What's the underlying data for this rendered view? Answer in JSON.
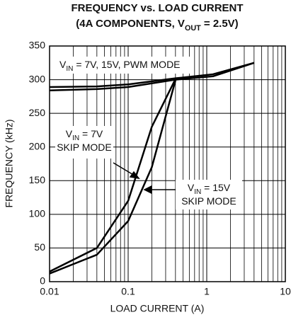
{
  "chart_data": {
    "type": "line",
    "title": [
      [
        {
          "text": "FREQUENCY vs. LOAD CURRENT"
        }
      ],
      [
        {
          "text": "(4A COMPONENTS, V"
        },
        {
          "text": "OUT",
          "sub": true
        },
        {
          "text": " = 2.5V)"
        }
      ]
    ],
    "xlabel": "LOAD CURRENT (A)",
    "ylabel": "FREQUENCY (kHz)",
    "xscale": "log",
    "xlim": [
      0.01,
      10
    ],
    "xticks": [
      0.01,
      0.1,
      1,
      10
    ],
    "ylim": [
      0,
      350
    ],
    "yticks": [
      0,
      50,
      100,
      150,
      200,
      250,
      300,
      350
    ],
    "grid": true,
    "series": [
      {
        "color": "#000000",
        "x": [
          0.01,
          0.04,
          0.1,
          0.2,
          0.4
        ],
        "values": [
          15,
          50,
          120,
          230,
          301
        ]
      },
      {
        "color": "#000000",
        "x": [
          0.01,
          0.04,
          0.1,
          0.2,
          0.4
        ],
        "values": [
          12,
          40,
          90,
          170,
          299
        ]
      },
      {
        "color": "#000000",
        "x": [
          0.01,
          0.04,
          0.1,
          0.4,
          1.2,
          4
        ],
        "values": [
          289,
          290,
          293,
          302,
          308,
          325
        ]
      },
      {
        "color": "#000000",
        "x": [
          0.01,
          0.04,
          0.1,
          0.4,
          1.2,
          4
        ],
        "values": [
          284,
          286,
          289,
          300,
          305,
          325
        ]
      }
    ],
    "annotations": [
      {
        "lines": [
          [
            {
              "text": "V"
            },
            {
              "text": "IN",
              "sub": true
            },
            {
              "text": " = 7V, 15V, PWM MODE"
            }
          ]
        ]
      },
      {
        "lines": [
          [
            {
              "text": "V"
            },
            {
              "text": "IN",
              "sub": true
            },
            {
              "text": " = 7V"
            }
          ],
          [
            {
              "text": "SKIP MODE"
            }
          ]
        ]
      },
      {
        "lines": [
          [
            {
              "text": "V"
            },
            {
              "text": "IN",
              "sub": true
            },
            {
              "text": " = 15V"
            }
          ],
          [
            {
              "text": "SKIP MODE"
            }
          ]
        ]
      }
    ]
  }
}
